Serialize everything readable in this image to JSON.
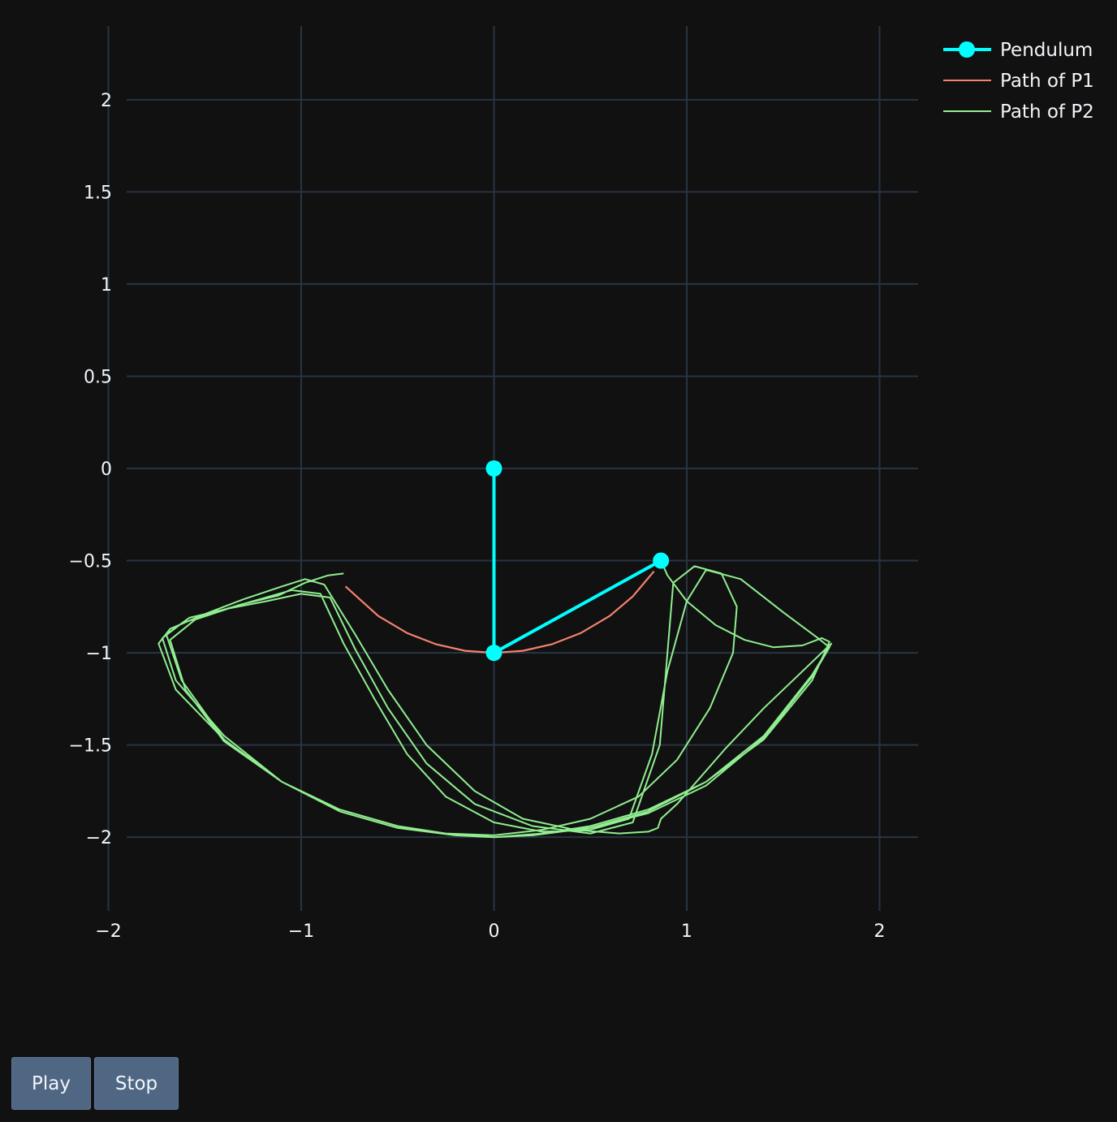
{
  "controls": {
    "play_label": "Play",
    "stop_label": "Stop"
  },
  "chart_data": {
    "type": "line",
    "title": "",
    "xlabel": "",
    "ylabel": "",
    "xlim": [
      -2.2,
      2.2
    ],
    "ylim": [
      -2.4,
      2.4
    ],
    "x_ticks": [
      -2,
      -1,
      0,
      1,
      2
    ],
    "x_tick_labels": [
      "−2",
      "−1",
      "0",
      "1",
      "2"
    ],
    "y_ticks": [
      2,
      1.5,
      1,
      0.5,
      0,
      -0.5,
      -1,
      -1.5,
      -2
    ],
    "y_tick_labels": [
      "2",
      "1.5",
      "1",
      "0.5",
      "0",
      "−0.5",
      "−1",
      "−1.5",
      "−2"
    ],
    "grid": true,
    "legend_position": "top-right",
    "colors": {
      "background": "#111111",
      "grid": "#283442",
      "pendulum": "#00ffff",
      "path_p1": "#f4826f",
      "path_p2": "#90ee90"
    },
    "series": [
      {
        "name": "Pendulum",
        "mode": "lines+markers",
        "x": [
          0,
          0,
          0.866
        ],
        "y": [
          0,
          -1,
          -0.5
        ]
      },
      {
        "name": "Path of P1",
        "mode": "lines",
        "x": [
          -0.77,
          -0.6,
          -0.45,
          -0.3,
          -0.15,
          0,
          0.15,
          0.3,
          0.45,
          0.6,
          0.72,
          0.83
        ],
        "y": [
          -0.64,
          -0.8,
          -0.893,
          -0.954,
          -0.989,
          -1,
          -0.989,
          -0.954,
          -0.893,
          -0.8,
          -0.694,
          -0.558
        ]
      },
      {
        "name": "Path of P2",
        "mode": "lines",
        "x": [
          0.866,
          0.9,
          1.0,
          1.15,
          1.3,
          1.45,
          1.6,
          1.7,
          1.74,
          1.65,
          1.4,
          1.1,
          0.8,
          0.5,
          0.25,
          0.0,
          -0.25,
          -0.5,
          -0.8,
          -1.1,
          -1.4,
          -1.65,
          -1.74,
          -1.68,
          -1.5,
          -1.3,
          -1.1,
          -0.98,
          -0.88,
          -0.72,
          -0.55,
          -0.35,
          -0.1,
          0.15,
          0.42,
          0.65,
          0.8,
          0.85,
          0.866,
          0.95,
          1.05,
          1.2,
          1.4,
          1.6,
          1.72,
          1.75,
          1.65,
          1.4,
          1.1,
          0.8,
          0.5,
          0.25,
          0.0,
          -0.25,
          -0.5,
          -0.8,
          -1.1,
          -1.4,
          -1.65,
          -1.72,
          -1.62,
          -1.45,
          -1.25,
          -1.05,
          -0.9,
          -0.78,
          -0.62,
          -0.45,
          -0.25,
          0.0,
          0.25,
          0.5,
          0.7,
          0.82,
          0.9,
          1.0,
          1.1,
          1.28,
          1.5,
          1.68,
          1.74,
          1.65,
          1.4,
          1.1,
          0.8,
          0.5,
          0.2,
          0.0,
          -0.2,
          -0.5,
          -0.8,
          -1.1,
          -1.4,
          -1.62,
          -1.7,
          -1.58,
          -1.38,
          -1.18,
          -1.0,
          -0.85,
          -0.72,
          -0.55,
          -0.35,
          -0.1,
          0.2,
          0.5,
          0.72,
          0.86,
          0.93,
          1.04,
          1.18,
          1.26,
          1.24,
          1.12,
          0.95,
          0.75,
          0.5,
          0.25,
          0.0,
          -0.25,
          -0.5,
          -0.8,
          -1.1,
          -1.4,
          -1.6,
          -1.68,
          -1.55,
          -1.32,
          -1.12,
          -0.98,
          -0.86,
          -0.78
        ],
        "y": [
          -0.5,
          -0.58,
          -0.72,
          -0.85,
          -0.93,
          -0.97,
          -0.96,
          -0.92,
          -0.94,
          -1.15,
          -1.47,
          -1.7,
          -1.85,
          -1.94,
          -1.98,
          -2.0,
          -1.98,
          -1.94,
          -1.85,
          -1.7,
          -1.47,
          -1.2,
          -0.95,
          -0.87,
          -0.79,
          -0.71,
          -0.64,
          -0.6,
          -0.63,
          -0.9,
          -1.2,
          -1.5,
          -1.75,
          -1.9,
          -1.96,
          -1.98,
          -1.97,
          -1.95,
          -1.9,
          -1.82,
          -1.7,
          -1.52,
          -1.3,
          -1.1,
          -0.98,
          -0.95,
          -1.12,
          -1.45,
          -1.7,
          -1.86,
          -1.95,
          -1.98,
          -2.0,
          -1.98,
          -1.95,
          -1.86,
          -1.7,
          -1.45,
          -1.15,
          -0.92,
          -0.84,
          -0.78,
          -0.72,
          -0.66,
          -0.68,
          -0.95,
          -1.25,
          -1.55,
          -1.78,
          -1.92,
          -1.97,
          -1.96,
          -1.9,
          -1.55,
          -1.1,
          -0.72,
          -0.55,
          -0.6,
          -0.78,
          -0.92,
          -0.97,
          -1.13,
          -1.46,
          -1.72,
          -1.87,
          -1.95,
          -1.99,
          -2.0,
          -1.99,
          -1.95,
          -1.86,
          -1.7,
          -1.47,
          -1.15,
          -0.9,
          -0.81,
          -0.76,
          -0.72,
          -0.68,
          -0.7,
          -0.98,
          -1.3,
          -1.6,
          -1.82,
          -1.94,
          -1.98,
          -1.92,
          -1.5,
          -0.62,
          -0.53,
          -0.57,
          -0.75,
          -1.0,
          -1.3,
          -1.58,
          -1.78,
          -1.9,
          -1.96,
          -1.99,
          -1.98,
          -1.95,
          -1.86,
          -1.7,
          -1.48,
          -1.2,
          -0.93,
          -0.82,
          -0.74,
          -0.69,
          -0.62,
          -0.58,
          -0.57
        ]
      }
    ]
  }
}
